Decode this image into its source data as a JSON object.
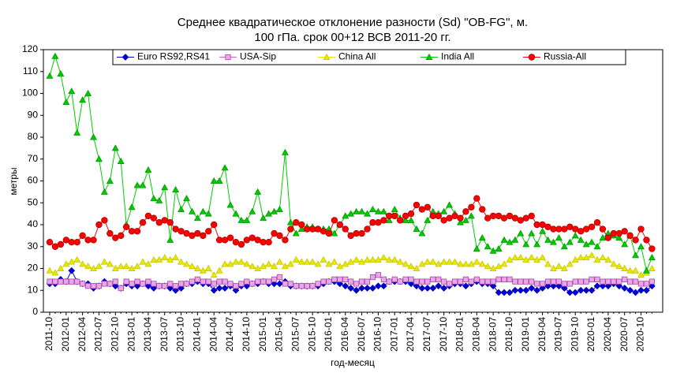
{
  "chart_data": {
    "type": "line",
    "title": [
      "Среднее квадратическое отклонение разности (Sd) \"OB-FG\", м.",
      "100 гПа. срок 00+12 ВСВ 2011-20 гг."
    ],
    "ylabel": "метры",
    "xlabel": "год-месяц",
    "ylim": [
      0,
      120
    ],
    "yticks": [
      0,
      10,
      20,
      30,
      40,
      50,
      60,
      70,
      80,
      90,
      100,
      110,
      120
    ],
    "legend": "top",
    "categories": [
      "2011-10",
      null,
      null,
      "2012-01",
      null,
      null,
      "2012-04",
      null,
      null,
      "2012-07",
      null,
      null,
      "2012-10",
      null,
      null,
      "2013-01",
      null,
      null,
      "2013-04",
      null,
      null,
      "2013-07",
      null,
      null,
      "2013-10",
      null,
      null,
      "2014-01",
      null,
      null,
      "2014-04",
      null,
      null,
      "2014-07",
      null,
      null,
      "2014-10",
      null,
      null,
      "2015-01",
      null,
      null,
      "2015-04",
      null,
      null,
      "2015-07",
      null,
      null,
      "2015-10",
      null,
      null,
      "2016-01",
      null,
      null,
      "2016-04",
      null,
      null,
      "2016-07",
      null,
      null,
      "2016-10",
      null,
      null,
      "2017-01",
      null,
      null,
      "2017-04",
      null,
      null,
      "2017-07",
      null,
      null,
      "2017-10",
      null,
      null,
      "2018-01",
      null,
      null,
      "2018-04",
      null,
      null,
      "2018-07",
      null,
      null,
      "2018-10",
      null,
      null,
      "2019-01",
      null,
      null,
      "2019-04",
      null,
      null,
      "2019-07",
      null,
      null,
      "2019-10",
      null,
      null,
      "2020-01",
      null,
      null,
      "2020-04",
      null,
      null,
      "2020-07",
      null,
      null,
      "2020-10",
      null,
      null
    ],
    "series": [
      {
        "name": "Euro RS92,RS41",
        "color": "#0000cc",
        "marker": "diamond",
        "values": [
          13,
          13,
          15,
          14,
          19,
          14,
          13,
          13,
          11,
          12,
          14,
          13,
          12,
          11,
          13,
          12,
          12,
          13,
          12,
          11,
          12,
          12,
          11,
          10,
          11,
          13,
          13,
          14,
          13,
          13,
          10,
          11,
          11,
          12,
          10,
          12,
          12,
          13,
          13,
          14,
          13,
          13,
          13,
          14,
          12,
          12,
          12,
          12,
          12,
          12,
          13,
          14,
          14,
          13,
          12,
          11,
          10,
          11,
          11,
          11,
          12,
          12,
          14,
          14,
          14,
          14,
          13,
          12,
          11,
          11,
          11,
          12,
          11,
          12,
          13,
          13,
          12,
          13,
          14,
          13,
          13,
          12,
          9,
          9,
          9,
          10,
          10,
          10,
          11,
          10,
          11,
          12,
          12,
          12,
          11,
          9,
          9,
          10,
          10,
          10,
          12,
          12,
          12,
          13,
          12,
          11,
          10,
          9,
          10,
          10,
          12
        ]
      },
      {
        "name": "USA-Sip",
        "color": "#cc66cc",
        "marker": "square",
        "values": [
          14,
          14,
          14,
          14,
          14,
          14,
          13,
          12,
          12,
          12,
          13,
          13,
          14,
          11,
          14,
          13,
          14,
          13,
          14,
          13,
          12,
          12,
          13,
          12,
          13,
          13,
          14,
          15,
          14,
          14,
          13,
          14,
          14,
          13,
          12,
          13,
          14,
          13,
          14,
          14,
          14,
          15,
          16,
          13,
          13,
          12,
          12,
          12,
          12,
          13,
          14,
          14,
          15,
          15,
          15,
          14,
          13,
          14,
          14,
          16,
          17,
          15,
          14,
          15,
          14,
          15,
          15,
          14,
          14,
          14,
          15,
          15,
          14,
          13,
          14,
          14,
          15,
          14,
          15,
          14,
          14,
          14,
          15,
          15,
          15,
          14,
          14,
          14,
          14,
          13,
          13,
          14,
          14,
          14,
          13,
          13,
          14,
          14,
          14,
          15,
          15,
          14,
          14,
          14,
          14,
          15,
          14,
          14,
          13,
          13,
          14
        ]
      },
      {
        "name": "China All",
        "color": "#e8e800",
        "marker": "triangle",
        "values": [
          19,
          18,
          20,
          22,
          23,
          24,
          22,
          21,
          20,
          21,
          23,
          22,
          20,
          21,
          21,
          20,
          21,
          23,
          22,
          24,
          24,
          25,
          24,
          25,
          23,
          22,
          21,
          20,
          19,
          20,
          17,
          19,
          22,
          22,
          23,
          23,
          22,
          21,
          20,
          21,
          22,
          21,
          23,
          21,
          22,
          24,
          23,
          23,
          23,
          22,
          24,
          22,
          23,
          21,
          22,
          23,
          24,
          23,
          24,
          24,
          24,
          25,
          24,
          24,
          23,
          22,
          21,
          20,
          22,
          23,
          23,
          22,
          23,
          23,
          23,
          22,
          22,
          22,
          23,
          22,
          21,
          20,
          21,
          22,
          24,
          25,
          25,
          24,
          25,
          24,
          25,
          22,
          20,
          21,
          20,
          22,
          24,
          25,
          25,
          26,
          24,
          25,
          24,
          22,
          21,
          20,
          19,
          19,
          17,
          18,
          20
        ]
      },
      {
        "name": "India All",
        "color": "#00cc00",
        "marker": "triangle",
        "values": [
          108,
          117,
          109,
          96,
          101,
          82,
          97,
          100,
          80,
          70,
          55,
          60,
          75,
          69,
          40,
          48,
          58,
          58,
          65,
          52,
          51,
          57,
          33,
          56,
          47,
          52,
          46,
          43,
          46,
          45,
          60,
          60,
          66,
          49,
          45,
          42,
          42,
          46,
          55,
          43,
          45,
          46,
          47,
          73,
          41,
          36,
          38,
          39,
          39,
          38,
          38,
          38,
          36,
          40,
          44,
          45,
          46,
          46,
          45,
          47,
          46,
          46,
          42,
          47,
          43,
          42,
          42,
          38,
          36,
          42,
          46,
          45,
          46,
          49,
          45,
          41,
          42,
          44,
          29,
          34,
          30,
          28,
          29,
          33,
          32,
          33,
          36,
          31,
          36,
          31,
          37,
          33,
          32,
          34,
          30,
          32,
          35,
          33,
          31,
          32,
          30,
          34,
          36,
          35,
          34,
          31,
          35,
          26,
          30,
          19,
          25
        ]
      },
      {
        "name": "Russia-All",
        "color": "#ff0000",
        "marker": "circle",
        "values": [
          32,
          30,
          31,
          33,
          32,
          32,
          35,
          33,
          33,
          40,
          42,
          36,
          34,
          35,
          39,
          37,
          37,
          41,
          44,
          43,
          41,
          42,
          41,
          38,
          37,
          36,
          35,
          36,
          35,
          37,
          40,
          33,
          33,
          34,
          32,
          31,
          33,
          34,
          33,
          32,
          32,
          36,
          35,
          33,
          38,
          41,
          40,
          38,
          38,
          38,
          37,
          36,
          42,
          40,
          38,
          35,
          36,
          36,
          38,
          41,
          41,
          42,
          44,
          44,
          42,
          44,
          45,
          49,
          47,
          48,
          44,
          44,
          42,
          43,
          44,
          43,
          46,
          48,
          52,
          47,
          43,
          44,
          44,
          43,
          44,
          43,
          42,
          43,
          44,
          40,
          40,
          39,
          38,
          38,
          38,
          39,
          38,
          37,
          38,
          39,
          41,
          38,
          34,
          36,
          36,
          37,
          35,
          33,
          38,
          33,
          29
        ]
      }
    ]
  }
}
